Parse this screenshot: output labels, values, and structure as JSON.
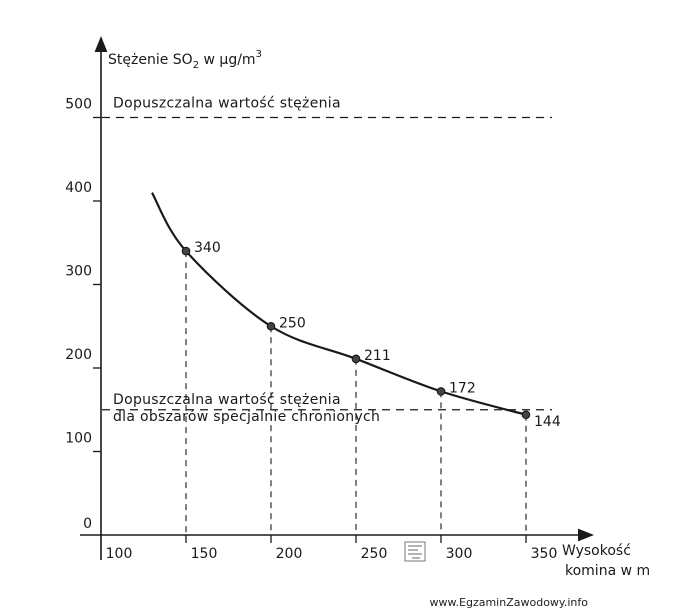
{
  "chart_data": {
    "type": "line",
    "ylabel_prefix": "Stężenie SO",
    "ylabel_sub": "2",
    "ylabel_suffix": " w μg/m",
    "ylabel_sup": "3",
    "xlabel_line1": "Wysokość",
    "xlabel_line2": "komina w m",
    "xlim": [
      100,
      370
    ],
    "ylim": [
      0,
      560
    ],
    "x_ticks": [
      100,
      150,
      200,
      250,
      300,
      350
    ],
    "y_ticks": [
      0,
      100,
      200,
      300,
      400,
      500
    ],
    "curve": {
      "x": [
        130,
        150,
        200,
        250,
        300,
        350
      ],
      "y": [
        410,
        340,
        250,
        211,
        172,
        144
      ]
    },
    "points": [
      {
        "x": 150,
        "y": 340,
        "label": "340"
      },
      {
        "x": 200,
        "y": 250,
        "label": "250"
      },
      {
        "x": 250,
        "y": 211,
        "label": "211"
      },
      {
        "x": 300,
        "y": 172,
        "label": "172"
      },
      {
        "x": 350,
        "y": 144,
        "label": "144"
      }
    ],
    "limits": [
      {
        "value": 500,
        "label_lines": [
          "Dopuszczalna wartość stężenia"
        ]
      },
      {
        "value": 150,
        "label_lines": [
          "Dopuszczalna wartość stężenia",
          "dla obszarów specjalnie chronionych"
        ]
      }
    ],
    "grid": false
  },
  "footer": "www.EgzaminZawodowy.info"
}
